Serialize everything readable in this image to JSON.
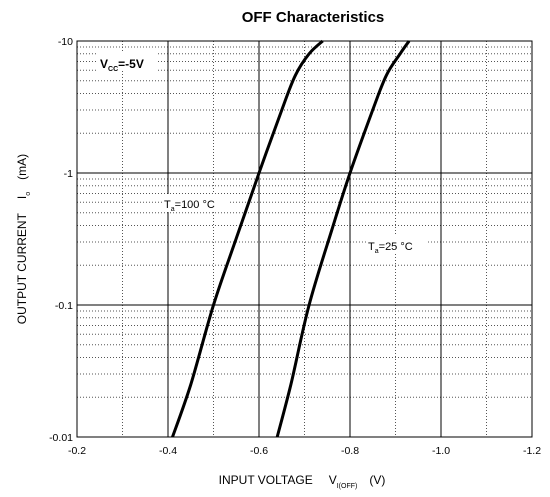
{
  "chart_data": {
    "type": "line",
    "title": "OFF Characteristics",
    "x_axis": {
      "label": "INPUT VOLTAGE",
      "symbol": "V",
      "symbol_sub": "I(OFF)",
      "unit": "(V)",
      "range": [
        -0.2,
        -1.2
      ],
      "ticks": [
        -0.2,
        -0.4,
        -0.6,
        -0.8,
        -1.0,
        -1.2
      ],
      "tick_labels": [
        "-0.2",
        "-0.4",
        "-0.6",
        "-0.8",
        "-1.0",
        "-1.2"
      ]
    },
    "y_axis": {
      "label": "OUTPUT CURRENT",
      "symbol": "I",
      "symbol_sub": "o",
      "unit": "(mA)",
      "scale": "log",
      "range": [
        -0.01,
        -10
      ],
      "ticks": [
        -0.01,
        -0.1,
        -1,
        -10
      ],
      "tick_labels": [
        "-0.01",
        "-0.1",
        "-1",
        "-10"
      ]
    },
    "condition": {
      "symbol": "V",
      "sub": "CC",
      "value": "=-5V"
    },
    "series": [
      {
        "name": "Ta=100 °C",
        "label_main": "T",
        "label_sub": "a",
        "label_rest": "=100 °C",
        "x": [
          -0.41,
          -0.45,
          -0.5,
          -0.55,
          -0.6,
          -0.65,
          -0.68,
          -0.71,
          -0.74
        ],
        "y": [
          -0.01,
          -0.025,
          -0.1,
          -0.32,
          -1.0,
          -3.0,
          -5.5,
          -8.0,
          -10
        ]
      },
      {
        "name": "Ta=25 °C",
        "label_main": "T",
        "label_sub": "a",
        "label_rest": "=25 °C",
        "x": [
          -0.64,
          -0.67,
          -0.71,
          -0.76,
          -0.8,
          -0.85,
          -0.88,
          -0.91,
          -0.93
        ],
        "y": [
          -0.01,
          -0.025,
          -0.1,
          -0.37,
          -1.0,
          -3.0,
          -5.5,
          -8.0,
          -10
        ]
      }
    ]
  }
}
